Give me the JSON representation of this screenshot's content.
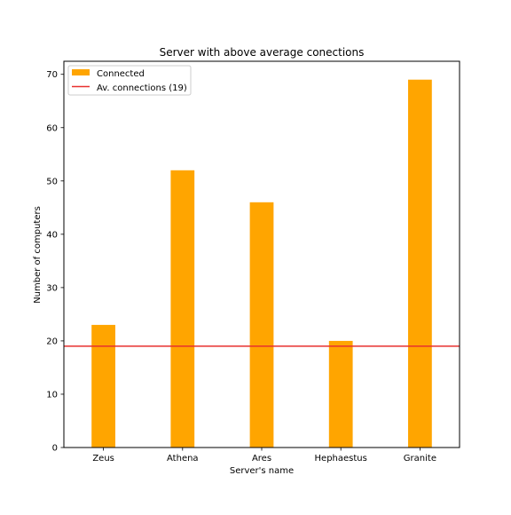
{
  "chart_data": {
    "type": "bar",
    "title": "Server with above average conections",
    "xlabel": "Server's name",
    "ylabel": "Number of computers",
    "categories": [
      "Zeus",
      "Athena",
      "Ares",
      "Hephaestus",
      "Granite"
    ],
    "series": [
      {
        "name": "Connected",
        "values": [
          23,
          52,
          46,
          20,
          69
        ],
        "color": "#FFA500"
      }
    ],
    "reference_line": {
      "name": "Av. connections (19)",
      "value": 19,
      "color": "#E8312F"
    },
    "ylim": [
      0,
      72.45
    ],
    "yticks": [
      0,
      10,
      20,
      30,
      40,
      50,
      60,
      70
    ],
    "grid": false,
    "legend_position": "top-left"
  }
}
